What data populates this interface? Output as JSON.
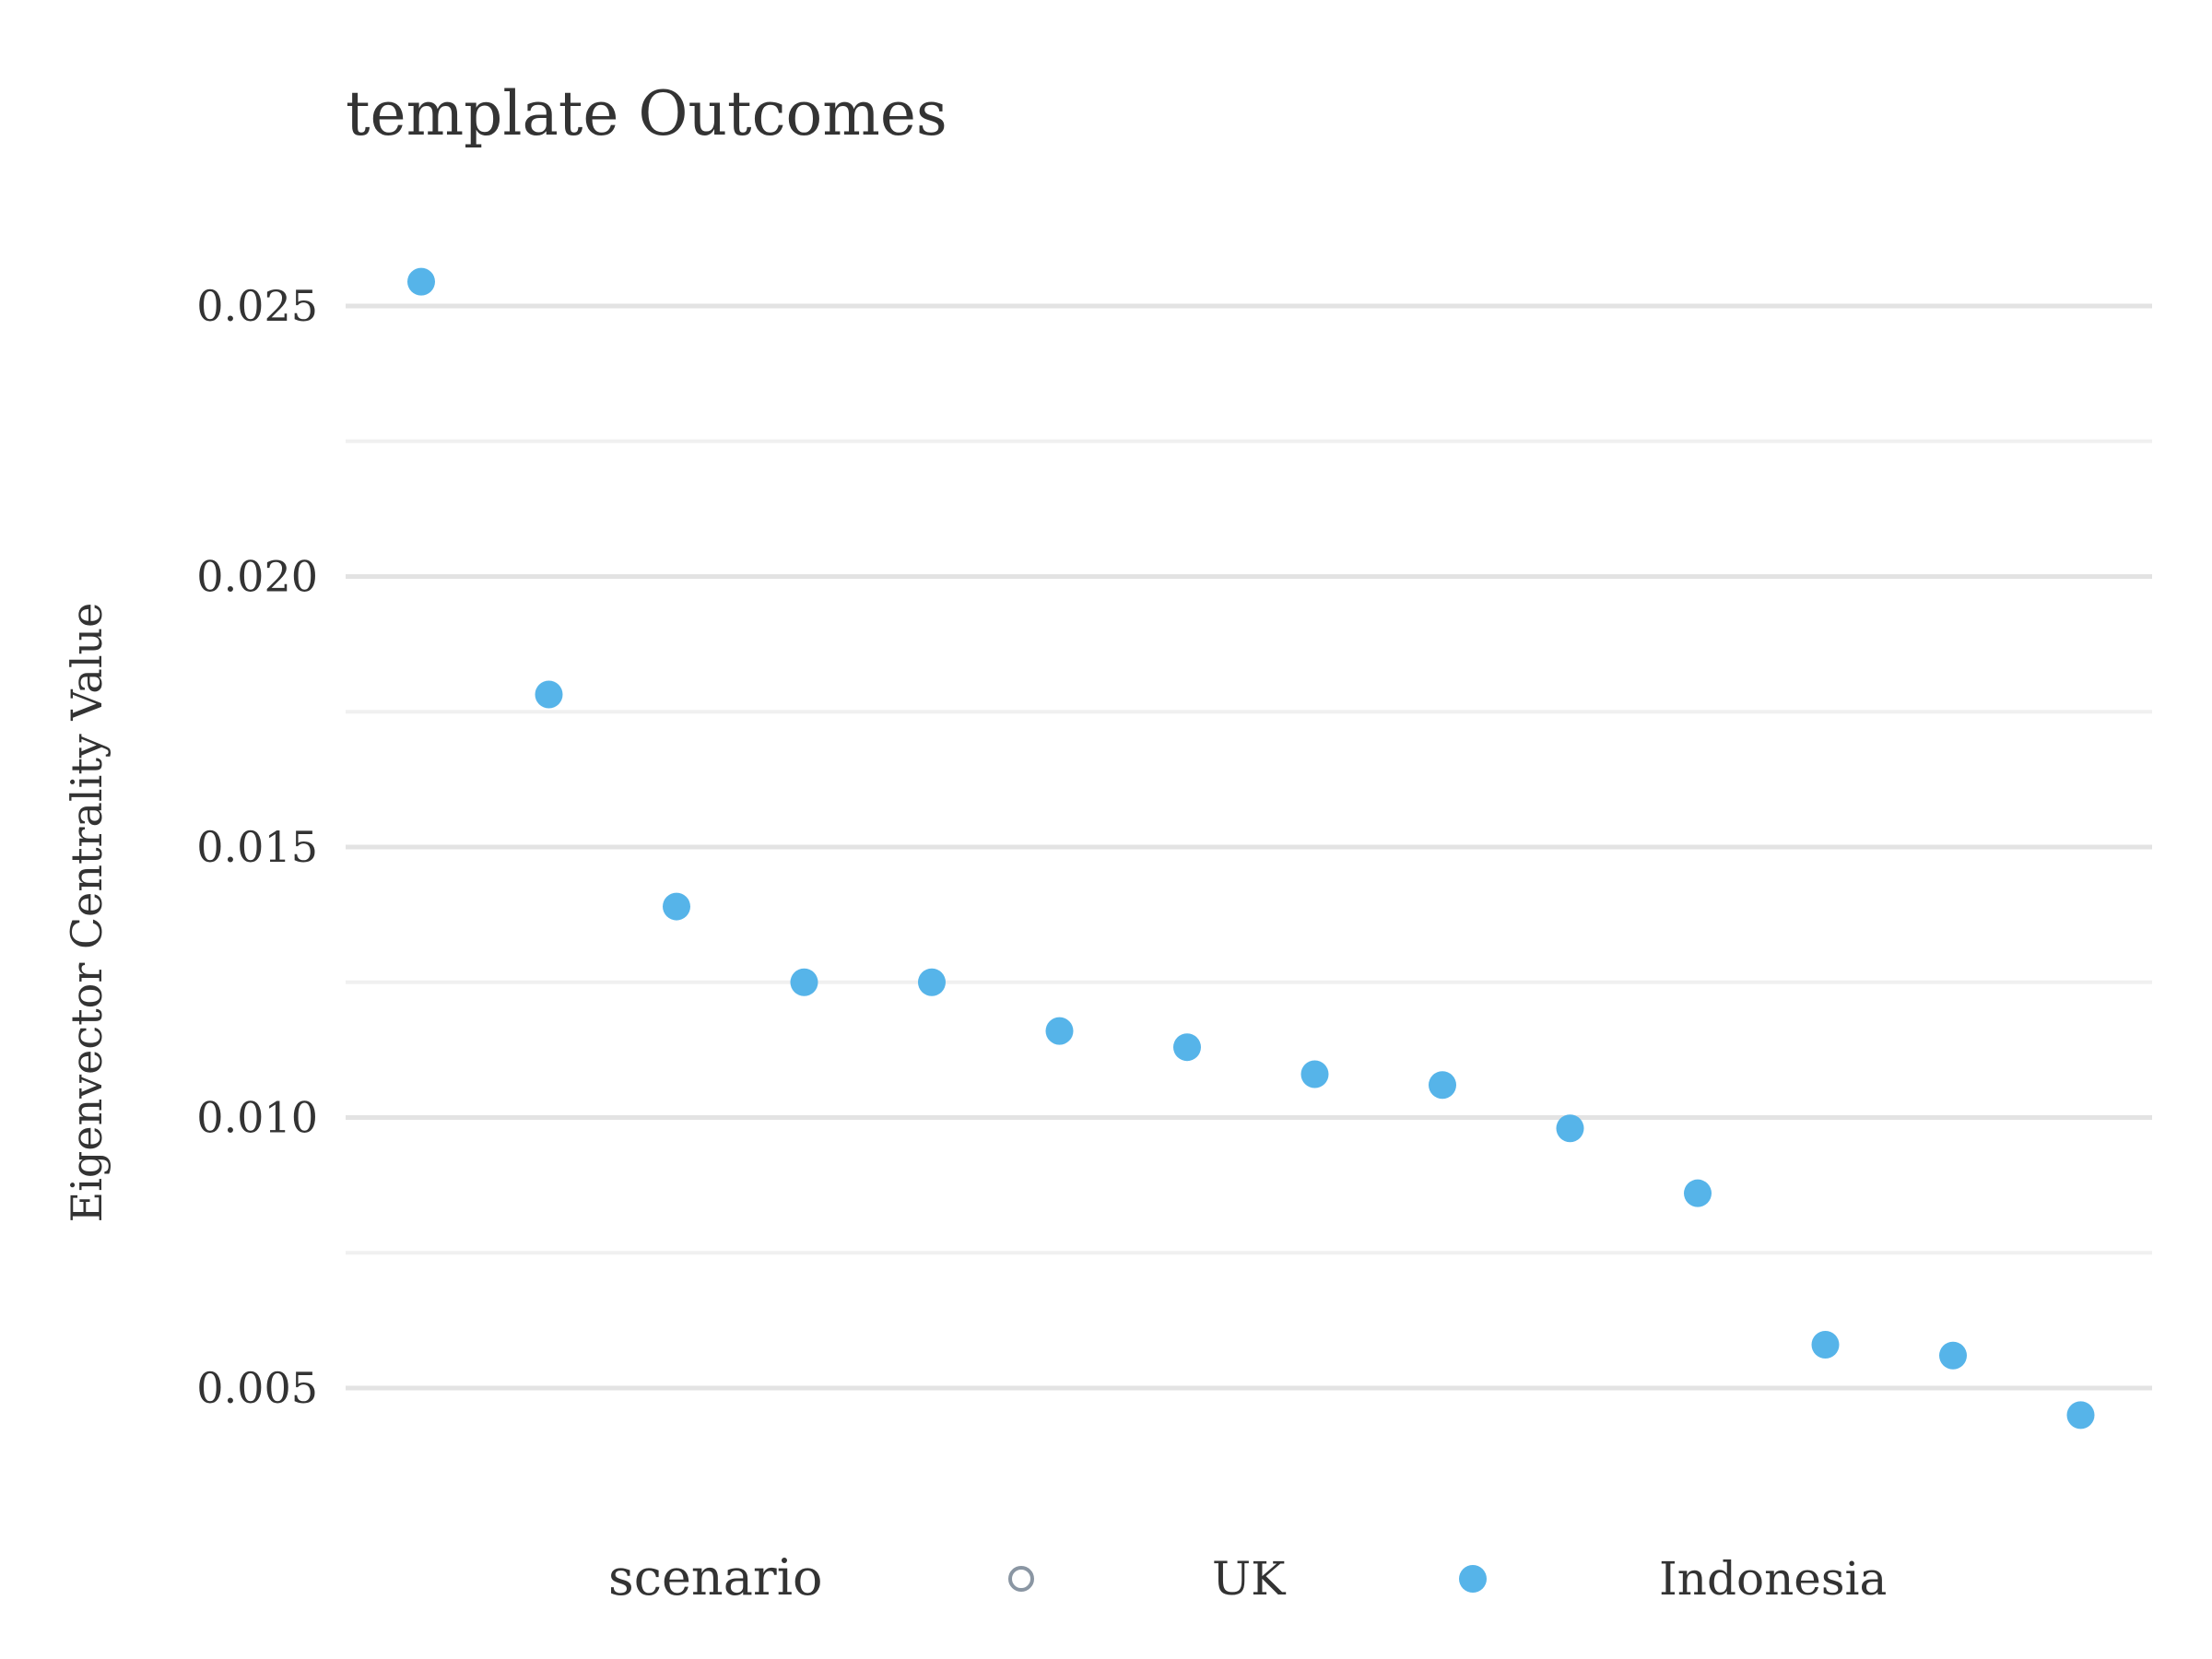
{
  "chart_data": {
    "type": "scatter",
    "title": "template Outcomes",
    "xlabel": "",
    "ylabel": "Eigenvector Centrality Value",
    "ylim": [
      0.0025,
      0.0265
    ],
    "y_ticks": [
      0.005,
      0.01,
      0.015,
      0.02,
      0.025
    ],
    "y_tick_labels": [
      "0.005",
      "0.010",
      "0.015",
      "0.020",
      "0.025"
    ],
    "grid": true,
    "legend": {
      "title": "scenario",
      "position": "bottom",
      "entries": [
        {
          "name": "UK",
          "marker": "open-circle",
          "color": "#8a96a3"
        },
        {
          "name": "Indonesia",
          "marker": "filled-circle",
          "color": "#56b4e9"
        }
      ]
    },
    "series": [
      {
        "name": "UK",
        "color": "#8a96a3",
        "values": []
      },
      {
        "name": "Indonesia",
        "color": "#56b4e9",
        "values": [
          0.02545,
          0.01782,
          0.0139,
          0.0125,
          0.0125,
          0.0116,
          0.0113,
          0.0108,
          0.0106,
          0.0098,
          0.0086,
          0.0058,
          0.0056,
          0.0045
        ]
      }
    ]
  }
}
